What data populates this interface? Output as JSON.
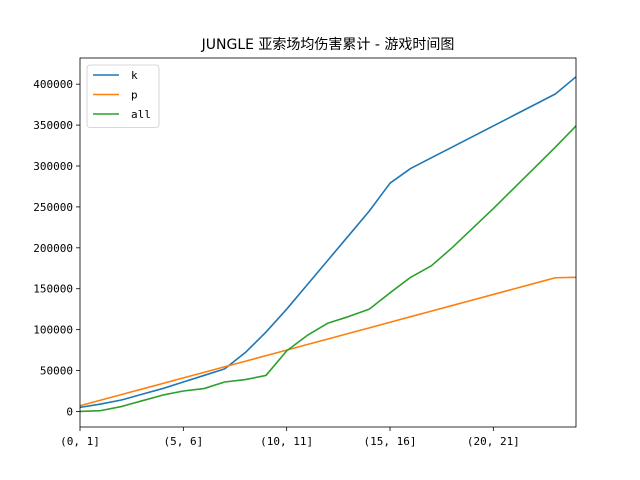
{
  "chart_data": {
    "type": "line",
    "title": "JUNGLE 亚索场均伤害累计 - 游戏时间图",
    "xlabel": "",
    "ylabel": "",
    "x": [
      0,
      1,
      2,
      3,
      4,
      5,
      6,
      7,
      8,
      9,
      10,
      11,
      12,
      13,
      14,
      15,
      16,
      17,
      18,
      19,
      20,
      21,
      22,
      23,
      24
    ],
    "x_tick_positions": [
      0,
      5,
      10,
      15,
      20
    ],
    "x_tick_labels": [
      "(0, 1]",
      "(5, 6]",
      "(10, 11]",
      "(15, 16]",
      "(20, 21]"
    ],
    "xlim": [
      0,
      24
    ],
    "ylim": [
      -19000,
      432000
    ],
    "y_ticks": [
      0,
      50000,
      100000,
      150000,
      200000,
      250000,
      300000,
      350000,
      400000
    ],
    "legend_position": "upper-left",
    "grid": false,
    "series": [
      {
        "name": "k",
        "color": "#1f77b4",
        "values": [
          5000,
          9000,
          14000,
          21000,
          28000,
          36000,
          44000,
          52000,
          72000,
          97000,
          125000,
          155000,
          185000,
          215000,
          245000,
          279000,
          297000,
          310000,
          323000,
          336000,
          349000,
          362000,
          375000,
          388000,
          409000
        ]
      },
      {
        "name": "p",
        "color": "#ff7f0e",
        "values": [
          7000,
          13800,
          20600,
          27400,
          34200,
          41000,
          47800,
          54600,
          61400,
          68200,
          75000,
          81800,
          88600,
          95400,
          102200,
          109000,
          115800,
          122600,
          129400,
          136200,
          143000,
          149800,
          156600,
          163400,
          164000
        ]
      },
      {
        "name": "all",
        "color": "#2ca02c",
        "values": [
          0,
          1000,
          6000,
          13000,
          20000,
          25000,
          28000,
          36000,
          39000,
          44000,
          74000,
          93000,
          108000,
          116000,
          125000,
          145000,
          164000,
          178000,
          200000,
          224000,
          248000,
          273000,
          298000,
          323000,
          349000
        ]
      }
    ]
  }
}
